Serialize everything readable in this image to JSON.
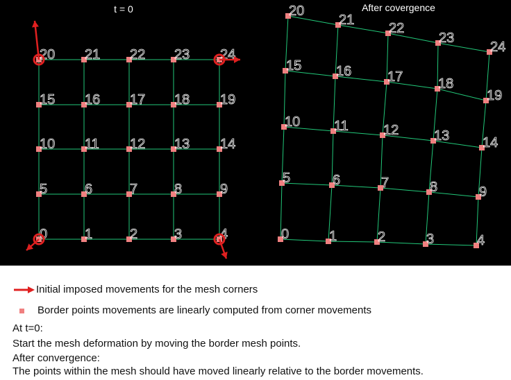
{
  "colors": {
    "background": "#000000",
    "grid_line": "#22c97a",
    "node_label": "#ffffff",
    "node_marker": "#f08080",
    "arrow": "#e02020",
    "corner_ring": "#e02020"
  },
  "left_panel": {
    "title": "t = 0",
    "node_labels": [
      "0",
      "1",
      "2",
      "3",
      "4",
      "5",
      "6",
      "7",
      "8",
      "9",
      "10",
      "11",
      "12",
      "13",
      "14",
      "15",
      "16",
      "17",
      "18",
      "19",
      "20",
      "21",
      "22",
      "23",
      "24"
    ]
  },
  "right_panel": {
    "title": "After covergence",
    "node_labels": [
      "0",
      "1",
      "2",
      "3",
      "4",
      "5",
      "6",
      "7",
      "8",
      "9",
      "10",
      "11",
      "12",
      "13",
      "14",
      "15",
      "16",
      "17",
      "18",
      "19",
      "20",
      "21",
      "22",
      "23",
      "24"
    ]
  },
  "legend": {
    "arrow_text": "Initial imposed movements for the mesh corners",
    "arrow_icon": "red-arrow-icon",
    "marker_text": "Border points movements are linearly computed from corner movements",
    "marker_icon": "pink-square-icon"
  },
  "notes": {
    "t0_heading": "At t=0:",
    "t0_text": "Start the mesh deformation by moving the border mesh points.",
    "conv_heading": "After convergence:",
    "conv_text": "The points within the mesh should have moved linearly relative to the border movements."
  }
}
